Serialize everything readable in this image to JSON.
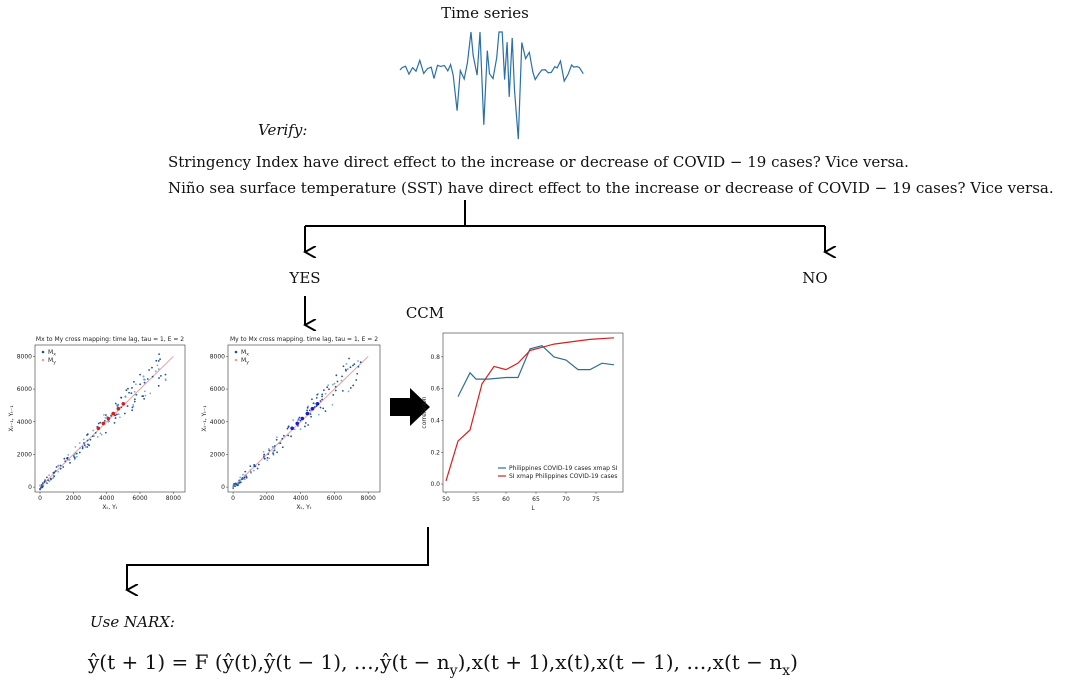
{
  "header": {
    "title": "Time series"
  },
  "verify": {
    "label": "Verify:",
    "questions": [
      "Stringency Index have direct effect to the increase or decrease of COVID − 19 cases? Vice versa.",
      "Niño sea surface temperature  (SST) have direct effect to the increase or decrease of  COVID − 19 cases? Vice versa."
    ]
  },
  "branches": {
    "yes": "YES",
    "no": "NO"
  },
  "ccm": {
    "label": "CCM"
  },
  "scatter_plots": [
    {
      "title": "Mx to My cross mapping: time lag, tau = 1, E = 2",
      "legend": [
        {
          "symbol": "M",
          "sub": "x",
          "color": "#1f4e9c"
        },
        {
          "symbol": "M",
          "sub": "y",
          "color": "#e8a0a0"
        }
      ],
      "xlabel": "Xₜ, Yₜ",
      "ylabel": "Xₜ₋₁, Yₜ₋₁",
      "xlim": [
        -300,
        8700
      ],
      "ylim": [
        -300,
        8700
      ],
      "xticks": [
        0,
        2000,
        4000,
        6000,
        8000
      ],
      "yticks": [
        0,
        2000,
        4000,
        6000,
        8000
      ]
    },
    {
      "title": "My to Mx cross mapping. time lag, tau = 1, E = 2",
      "legend": [
        {
          "symbol": "M",
          "sub": "x",
          "color": "#1f4e9c"
        },
        {
          "symbol": "M",
          "sub": "y",
          "color": "#e8a0a0"
        }
      ],
      "xlabel": "Xₜ, Yₜ",
      "ylabel": "Xₜ₋₁, Yₜ₋₁",
      "xlim": [
        -300,
        8700
      ],
      "ylim": [
        -300,
        8700
      ],
      "xticks": [
        0,
        2000,
        4000,
        6000,
        8000
      ],
      "yticks": [
        0,
        2000,
        4000,
        6000,
        8000
      ]
    }
  ],
  "ccm_plot": {
    "type": "line",
    "xlabel": "L",
    "ylabel": "correlation",
    "xlim": [
      49.5,
      79.5
    ],
    "ylim": [
      -0.05,
      0.95
    ],
    "xticks": [
      50,
      55,
      60,
      65,
      70,
      75
    ],
    "yticks": [
      {
        "value": 0,
        "label": "0.0"
      },
      {
        "value": 0.2,
        "label": "0.2"
      },
      {
        "value": 0.4,
        "label": "0.4"
      },
      {
        "value": 0.6,
        "label": "0.6"
      },
      {
        "value": 0.8,
        "label": "0.8"
      }
    ],
    "series": [
      {
        "name": "Philippines COVID-19 cases xmap SI",
        "color": "#2f6f8f",
        "x": [
          52,
          54,
          55,
          57,
          60,
          62,
          64,
          66,
          68,
          70,
          72,
          74,
          76,
          78
        ],
        "values": [
          0.55,
          0.7,
          0.66,
          0.66,
          0.67,
          0.67,
          0.85,
          0.87,
          0.8,
          0.78,
          0.72,
          0.72,
          0.76,
          0.75
        ]
      },
      {
        "name": "SI xmap Philippines COVID-19 cases",
        "color": "#d62020",
        "x": [
          50,
          52,
          54,
          56,
          58,
          60,
          62,
          64,
          66,
          68,
          70,
          74,
          78
        ],
        "values": [
          0.02,
          0.27,
          0.34,
          0.63,
          0.74,
          0.72,
          0.76,
          0.84,
          0.86,
          0.88,
          0.89,
          0.91,
          0.92
        ]
      }
    ]
  },
  "narx": {
    "label": "Use NARX:",
    "formula": [
      "ŷ(t + 1) = F (ŷ(t),ŷ(t − 1), …,ŷ(t − n",
      "y",
      "),x(t + 1),x(t),x(t − 1), …,x(t − n",
      "x",
      ")"
    ]
  }
}
